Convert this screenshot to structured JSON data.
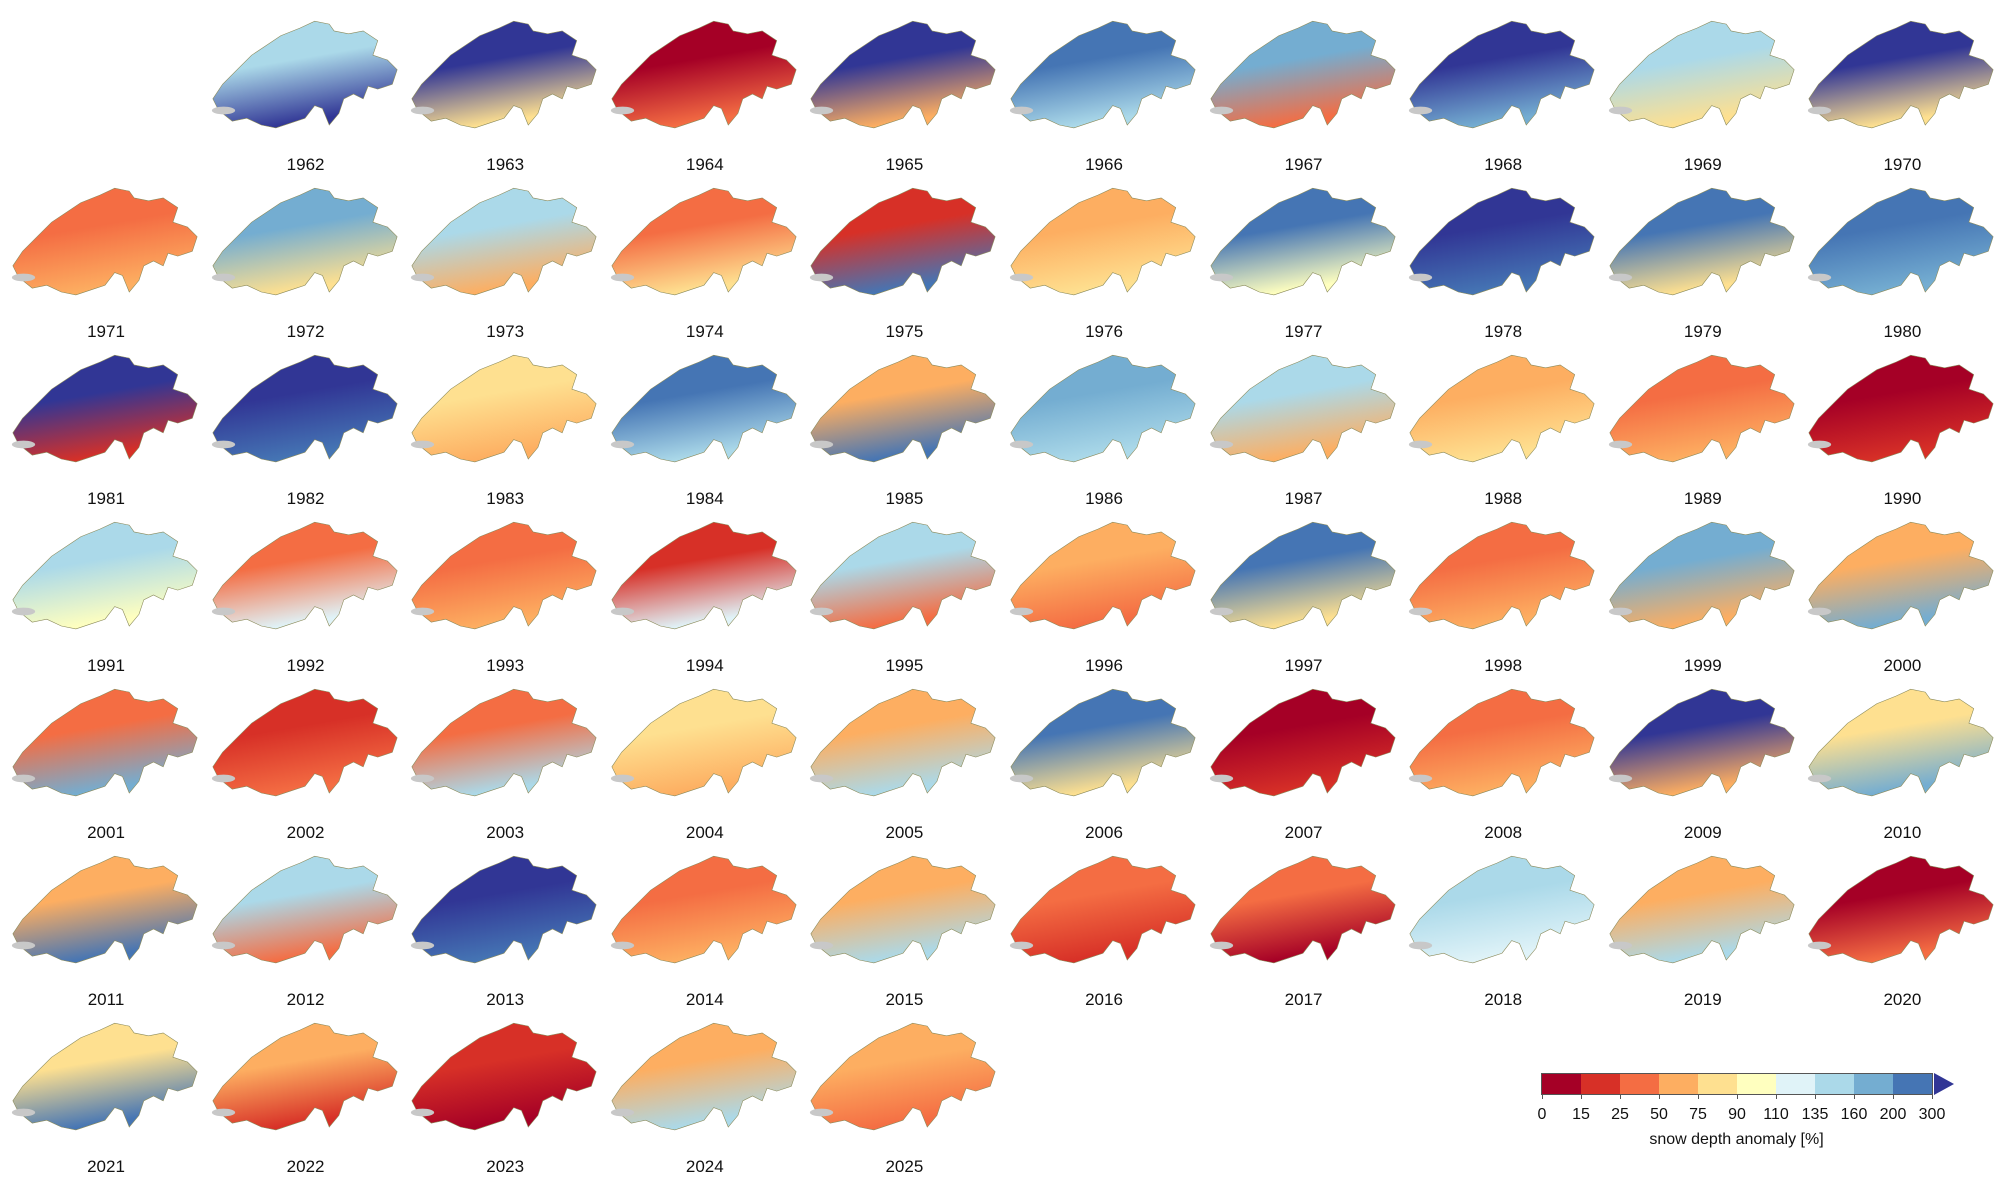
{
  "maps": [
    {
      "year": "1962",
      "main": "#abd9e9",
      "second": "#313695"
    },
    {
      "year": "1963",
      "main": "#313695",
      "second": "#fee090"
    },
    {
      "year": "1964",
      "main": "#a50026",
      "second": "#f46d43"
    },
    {
      "year": "1965",
      "main": "#313695",
      "second": "#fdae61"
    },
    {
      "year": "1966",
      "main": "#4575b4",
      "second": "#abd9e9"
    },
    {
      "year": "1967",
      "main": "#74add1",
      "second": "#f46d43"
    },
    {
      "year": "1968",
      "main": "#313695",
      "second": "#74add1"
    },
    {
      "year": "1969",
      "main": "#abd9e9",
      "second": "#fee090"
    },
    {
      "year": "1970",
      "main": "#313695",
      "second": "#fee090"
    },
    {
      "year": "1971",
      "main": "#f46d43",
      "second": "#fdae61"
    },
    {
      "year": "1972",
      "main": "#74add1",
      "second": "#fee090"
    },
    {
      "year": "1973",
      "main": "#abd9e9",
      "second": "#fdae61"
    },
    {
      "year": "1974",
      "main": "#f46d43",
      "second": "#fee090"
    },
    {
      "year": "1975",
      "main": "#d73027",
      "second": "#4575b4"
    },
    {
      "year": "1976",
      "main": "#fdae61",
      "second": "#fee090"
    },
    {
      "year": "1977",
      "main": "#4575b4",
      "second": "#ffffbf"
    },
    {
      "year": "1978",
      "main": "#313695",
      "second": "#4575b4"
    },
    {
      "year": "1979",
      "main": "#4575b4",
      "second": "#fee090"
    },
    {
      "year": "1980",
      "main": "#4575b4",
      "second": "#74add1"
    },
    {
      "year": "1981",
      "main": "#313695",
      "second": "#d73027"
    },
    {
      "year": "1982",
      "main": "#313695",
      "second": "#4575b4"
    },
    {
      "year": "1983",
      "main": "#fee090",
      "second": "#fdae61"
    },
    {
      "year": "1984",
      "main": "#4575b4",
      "second": "#abd9e9"
    },
    {
      "year": "1985",
      "main": "#fdae61",
      "second": "#4575b4"
    },
    {
      "year": "1986",
      "main": "#74add1",
      "second": "#abd9e9"
    },
    {
      "year": "1987",
      "main": "#abd9e9",
      "second": "#fdae61"
    },
    {
      "year": "1988",
      "main": "#fdae61",
      "second": "#fee090"
    },
    {
      "year": "1989",
      "main": "#f46d43",
      "second": "#fdae61"
    },
    {
      "year": "1990",
      "main": "#a50026",
      "second": "#d73027"
    },
    {
      "year": "1991",
      "main": "#abd9e9",
      "second": "#ffffbf"
    },
    {
      "year": "1992",
      "main": "#f46d43",
      "second": "#e0f3f8"
    },
    {
      "year": "1993",
      "main": "#f46d43",
      "second": "#fdae61"
    },
    {
      "year": "1994",
      "main": "#d73027",
      "second": "#e0f3f8"
    },
    {
      "year": "1995",
      "main": "#abd9e9",
      "second": "#f46d43"
    },
    {
      "year": "1996",
      "main": "#fdae61",
      "second": "#f46d43"
    },
    {
      "year": "1997",
      "main": "#4575b4",
      "second": "#fee090"
    },
    {
      "year": "1998",
      "main": "#f46d43",
      "second": "#fdae61"
    },
    {
      "year": "1999",
      "main": "#74add1",
      "second": "#fdae61"
    },
    {
      "year": "2000",
      "main": "#fdae61",
      "second": "#74add1"
    },
    {
      "year": "2001",
      "main": "#f46d43",
      "second": "#74add1"
    },
    {
      "year": "2002",
      "main": "#d73027",
      "second": "#f46d43"
    },
    {
      "year": "2003",
      "main": "#f46d43",
      "second": "#abd9e9"
    },
    {
      "year": "2004",
      "main": "#fee090",
      "second": "#fdae61"
    },
    {
      "year": "2005",
      "main": "#fdae61",
      "second": "#abd9e9"
    },
    {
      "year": "2006",
      "main": "#4575b4",
      "second": "#fee090"
    },
    {
      "year": "2007",
      "main": "#a50026",
      "second": "#d73027"
    },
    {
      "year": "2008",
      "main": "#f46d43",
      "second": "#fdae61"
    },
    {
      "year": "2009",
      "main": "#313695",
      "second": "#fdae61"
    },
    {
      "year": "2010",
      "main": "#fee090",
      "second": "#74add1"
    },
    {
      "year": "2011",
      "main": "#fdae61",
      "second": "#4575b4"
    },
    {
      "year": "2012",
      "main": "#abd9e9",
      "second": "#f46d43"
    },
    {
      "year": "2013",
      "main": "#313695",
      "second": "#4575b4"
    },
    {
      "year": "2014",
      "main": "#f46d43",
      "second": "#fdae61"
    },
    {
      "year": "2015",
      "main": "#fdae61",
      "second": "#abd9e9"
    },
    {
      "year": "2016",
      "main": "#f46d43",
      "second": "#d73027"
    },
    {
      "year": "2017",
      "main": "#f46d43",
      "second": "#a50026"
    },
    {
      "year": "2018",
      "main": "#abd9e9",
      "second": "#e0f3f8"
    },
    {
      "year": "2019",
      "main": "#fdae61",
      "second": "#abd9e9"
    },
    {
      "year": "2020",
      "main": "#a50026",
      "second": "#f46d43"
    },
    {
      "year": "2021",
      "main": "#fee090",
      "second": "#4575b4"
    },
    {
      "year": "2022",
      "main": "#fdae61",
      "second": "#d73027"
    },
    {
      "year": "2023",
      "main": "#d73027",
      "second": "#a50026"
    },
    {
      "year": "2024",
      "main": "#fdae61",
      "second": "#abd9e9"
    },
    {
      "year": "2025",
      "main": "#fdae61",
      "second": "#f46d43"
    }
  ],
  "colorbar": {
    "title": "snow depth anomaly [%]",
    "ticks": [
      "0",
      "15",
      "25",
      "50",
      "75",
      "90",
      "110",
      "135",
      "160",
      "200",
      "300"
    ],
    "colors": [
      "#a50026",
      "#d73027",
      "#f46d43",
      "#fdae61",
      "#fee090",
      "#ffffbf",
      "#e0f3f8",
      "#abd9e9",
      "#74add1",
      "#4575b4"
    ],
    "extend_color": "#313695"
  }
}
